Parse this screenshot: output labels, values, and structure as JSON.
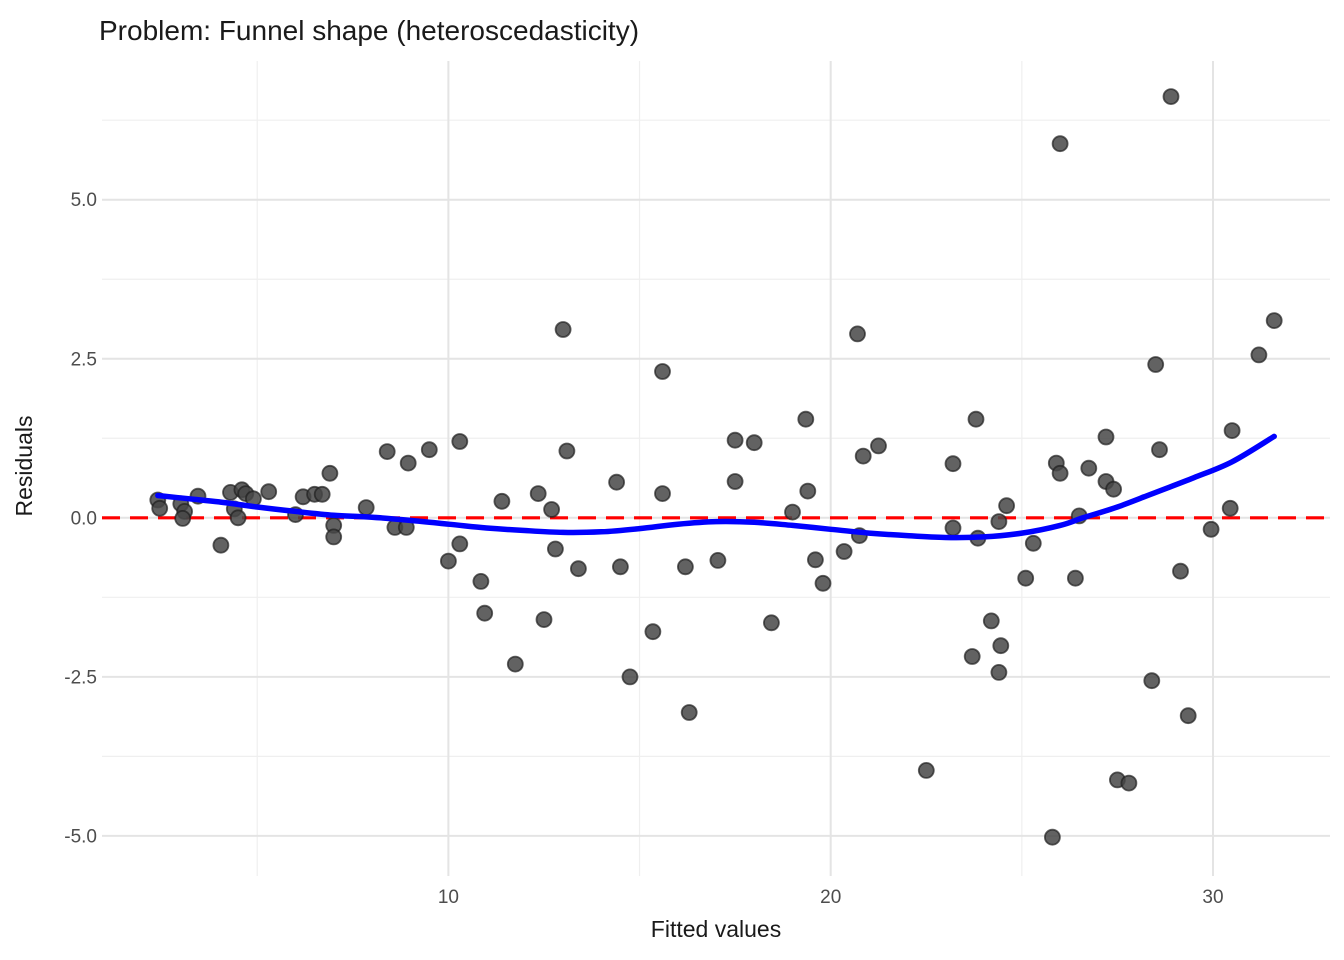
{
  "chart_data": {
    "type": "scatter",
    "title": "Problem: Funnel shape (heteroscedasticity)",
    "xlabel": "Fitted values",
    "ylabel": "Residuals",
    "xlim": [
      0.94,
      33.06
    ],
    "ylim": [
      -5.63,
      7.18
    ],
    "grid": true,
    "legend_position": "none",
    "x_major_ticks": [
      10,
      20,
      30
    ],
    "x_tick_labels": [
      "10",
      "20",
      "30"
    ],
    "x_minor_ticks": [
      5,
      15,
      25
    ],
    "y_major_ticks": [
      -5.0,
      -2.5,
      0.0,
      2.5,
      5.0
    ],
    "y_tick_labels": [
      "-5.0",
      "-2.5",
      "0.0",
      "2.5",
      "5.0"
    ],
    "y_minor_ticks": [
      -3.75,
      -1.25,
      1.25,
      3.75,
      6.25
    ],
    "zero_line": {
      "y": 0,
      "style": "dashed",
      "color": "#FF0000"
    },
    "smooth_line": {
      "color": "#0000FF",
      "points": [
        [
          2.4,
          0.35
        ],
        [
          3.2,
          0.3
        ],
        [
          4.0,
          0.25
        ],
        [
          5.0,
          0.17
        ],
        [
          6.0,
          0.1
        ],
        [
          7.0,
          0.04
        ],
        [
          8.0,
          0.01
        ],
        [
          9.0,
          -0.04
        ],
        [
          10.0,
          -0.1
        ],
        [
          11.0,
          -0.16
        ],
        [
          12.0,
          -0.2
        ],
        [
          13.0,
          -0.23
        ],
        [
          14.0,
          -0.22
        ],
        [
          15.0,
          -0.17
        ],
        [
          16.0,
          -0.1
        ],
        [
          17.0,
          -0.06
        ],
        [
          18.0,
          -0.07
        ],
        [
          19.0,
          -0.12
        ],
        [
          20.0,
          -0.18
        ],
        [
          21.0,
          -0.24
        ],
        [
          22.0,
          -0.28
        ],
        [
          23.0,
          -0.31
        ],
        [
          24.0,
          -0.3
        ],
        [
          25.0,
          -0.24
        ],
        [
          26.0,
          -0.12
        ],
        [
          26.6,
          0.0
        ],
        [
          27.5,
          0.17
        ],
        [
          28.5,
          0.4
        ],
        [
          29.5,
          0.63
        ],
        [
          30.5,
          0.88
        ],
        [
          31.6,
          1.28
        ]
      ]
    },
    "points": [
      [
        2.4,
        0.28
      ],
      [
        2.45,
        0.15
      ],
      [
        3.0,
        0.22
      ],
      [
        3.1,
        0.1
      ],
      [
        3.05,
        -0.01
      ],
      [
        3.45,
        0.34
      ],
      [
        4.05,
        -0.43
      ],
      [
        4.3,
        0.4
      ],
      [
        4.4,
        0.14
      ],
      [
        4.5,
        0.0
      ],
      [
        4.6,
        0.44
      ],
      [
        4.7,
        0.38
      ],
      [
        4.9,
        0.3
      ],
      [
        5.3,
        0.41
      ],
      [
        6.0,
        0.05
      ],
      [
        6.2,
        0.33
      ],
      [
        6.5,
        0.37
      ],
      [
        6.7,
        0.37
      ],
      [
        6.9,
        0.7
      ],
      [
        7.0,
        -0.12
      ],
      [
        7.0,
        -0.3
      ],
      [
        7.85,
        0.16
      ],
      [
        8.4,
        1.04
      ],
      [
        8.6,
        -0.15
      ],
      [
        8.9,
        -0.15
      ],
      [
        8.95,
        0.86
      ],
      [
        9.5,
        1.07
      ],
      [
        10.0,
        -0.68
      ],
      [
        10.3,
        1.2
      ],
      [
        10.3,
        -0.41
      ],
      [
        10.85,
        -1.0
      ],
      [
        10.95,
        -1.5
      ],
      [
        11.4,
        0.26
      ],
      [
        11.75,
        -2.3
      ],
      [
        12.35,
        0.38
      ],
      [
        12.5,
        -1.6
      ],
      [
        12.7,
        0.13
      ],
      [
        12.8,
        -0.49
      ],
      [
        13.0,
        2.96
      ],
      [
        13.1,
        1.05
      ],
      [
        13.4,
        -0.8
      ],
      [
        14.4,
        0.56
      ],
      [
        14.5,
        -0.77
      ],
      [
        14.75,
        -2.5
      ],
      [
        15.35,
        -1.79
      ],
      [
        15.6,
        2.3
      ],
      [
        15.6,
        0.38
      ],
      [
        16.2,
        -0.77
      ],
      [
        16.3,
        -3.06
      ],
      [
        17.05,
        -0.67
      ],
      [
        17.5,
        1.22
      ],
      [
        17.5,
        0.57
      ],
      [
        18.0,
        1.18
      ],
      [
        18.45,
        -1.65
      ],
      [
        19.0,
        0.09
      ],
      [
        19.35,
        1.55
      ],
      [
        19.4,
        0.42
      ],
      [
        19.6,
        -0.66
      ],
      [
        19.8,
        -1.03
      ],
      [
        20.35,
        -0.53
      ],
      [
        20.7,
        2.89
      ],
      [
        20.75,
        -0.28
      ],
      [
        20.85,
        0.97
      ],
      [
        21.25,
        1.13
      ],
      [
        22.5,
        -3.97
      ],
      [
        23.2,
        0.85
      ],
      [
        23.2,
        -0.16
      ],
      [
        23.7,
        -2.18
      ],
      [
        23.8,
        1.55
      ],
      [
        23.85,
        -0.32
      ],
      [
        24.2,
        -1.62
      ],
      [
        24.4,
        -0.06
      ],
      [
        24.4,
        -2.43
      ],
      [
        24.45,
        -2.01
      ],
      [
        24.6,
        0.19
      ],
      [
        25.1,
        -0.95
      ],
      [
        25.3,
        -0.4
      ],
      [
        25.8,
        -5.02
      ],
      [
        25.9,
        0.86
      ],
      [
        26.0,
        0.7
      ],
      [
        26.0,
        5.88
      ],
      [
        26.4,
        -0.95
      ],
      [
        26.5,
        0.03
      ],
      [
        26.75,
        0.78
      ],
      [
        27.2,
        1.27
      ],
      [
        27.2,
        0.57
      ],
      [
        27.4,
        0.45
      ],
      [
        27.5,
        -4.12
      ],
      [
        27.8,
        -4.17
      ],
      [
        28.4,
        -2.56
      ],
      [
        28.5,
        2.41
      ],
      [
        28.6,
        1.07
      ],
      [
        28.9,
        6.62
      ],
      [
        29.15,
        -0.84
      ],
      [
        29.35,
        -3.11
      ],
      [
        29.95,
        -0.18
      ],
      [
        30.45,
        0.15
      ],
      [
        30.5,
        1.37
      ],
      [
        31.2,
        2.56
      ],
      [
        31.6,
        3.1
      ]
    ],
    "colors": {
      "point_fill": "#474747",
      "point_stroke": "#1F1F1F",
      "smooth_line": "#0000FF",
      "zero_line": "#FF0000",
      "grid_major": "#E4E4E4",
      "grid_minor": "#EFEFEF",
      "tick_text": "#4D4D4D",
      "title_text": "#1A1A1A",
      "background": "#FFFFFF"
    }
  }
}
